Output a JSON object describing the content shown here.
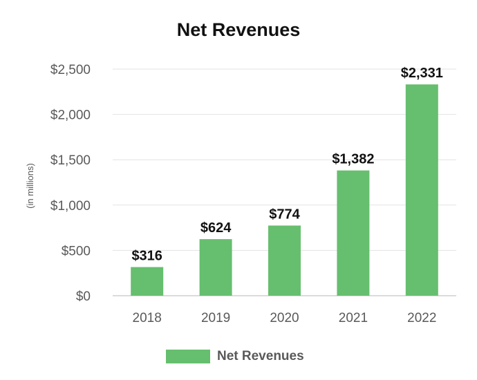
{
  "chart_data": {
    "type": "bar",
    "title": "Net Revenues",
    "ylabel": "(in millions)",
    "xlabel": "",
    "categories": [
      "2018",
      "2019",
      "2020",
      "2021",
      "2022"
    ],
    "series": [
      {
        "name": "Net Revenues",
        "values": [
          316,
          624,
          774,
          1382,
          2331
        ],
        "color": "#66BF6E"
      }
    ],
    "value_labels": [
      "$316",
      "$624",
      "$774",
      "$1,382",
      "$2,331"
    ],
    "ylim": [
      0,
      2500
    ],
    "yticks": [
      0,
      500,
      1000,
      1500,
      2000,
      2500
    ],
    "ytick_labels": [
      "$0",
      "$500",
      "$1,000",
      "$1,500",
      "$2,000",
      "$2,500"
    ],
    "grid": true,
    "legend_position": "bottom"
  }
}
